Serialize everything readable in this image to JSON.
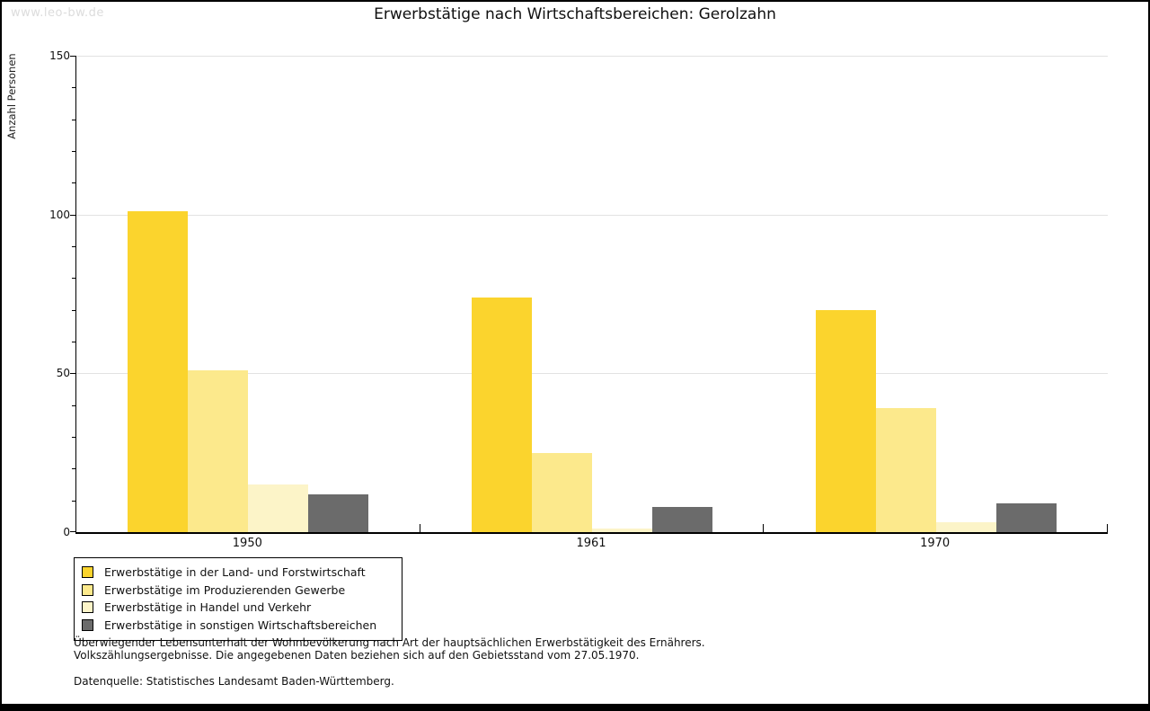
{
  "page": {
    "watermark": "www.leo-bw.de"
  },
  "chart_data": {
    "type": "bar",
    "title": "Erwerbstätige nach Wirtschaftsbereichen: Gerolzahn",
    "categories": [
      "1950",
      "1961",
      "1970"
    ],
    "series": [
      {
        "name": "Erwerbstätige in der Land- und Forstwirtschaft",
        "color": "#FBD42D",
        "values": [
          101,
          74,
          70
        ]
      },
      {
        "name": "Erwerbstätige im Produzierenden Gewerbe",
        "color": "#FCE98C",
        "values": [
          51,
          25,
          39
        ]
      },
      {
        "name": "Erwerbstätige in Handel und Verkehr",
        "color": "#FCF4C8",
        "values": [
          15,
          1,
          3
        ]
      },
      {
        "name": "Erwerbstätige in sonstigen Wirtschaftsbereichen",
        "color": "#6B6B6B",
        "values": [
          12,
          8,
          9
        ]
      }
    ],
    "xlabel": "",
    "ylabel": "Anzahl Personen",
    "ylim": [
      0,
      150
    ],
    "yticks": [
      0,
      50,
      100,
      150
    ],
    "minor_tick_step": 10,
    "grid": true,
    "gridline_color": "#e2e2e2",
    "legend_position": "bottom-left"
  },
  "footnotes": {
    "line1": "Überwiegender Lebensunterhalt der Wohnbevölkerung nach Art der hauptsächlichen Erwerbstätigkeit des Ernährers.",
    "line2": "Volkszählungsergebnisse. Die angegebenen Daten beziehen sich auf den Gebietsstand vom 27.05.1970.",
    "source": "Datenquelle: Statistisches Landesamt Baden-Württemberg."
  }
}
